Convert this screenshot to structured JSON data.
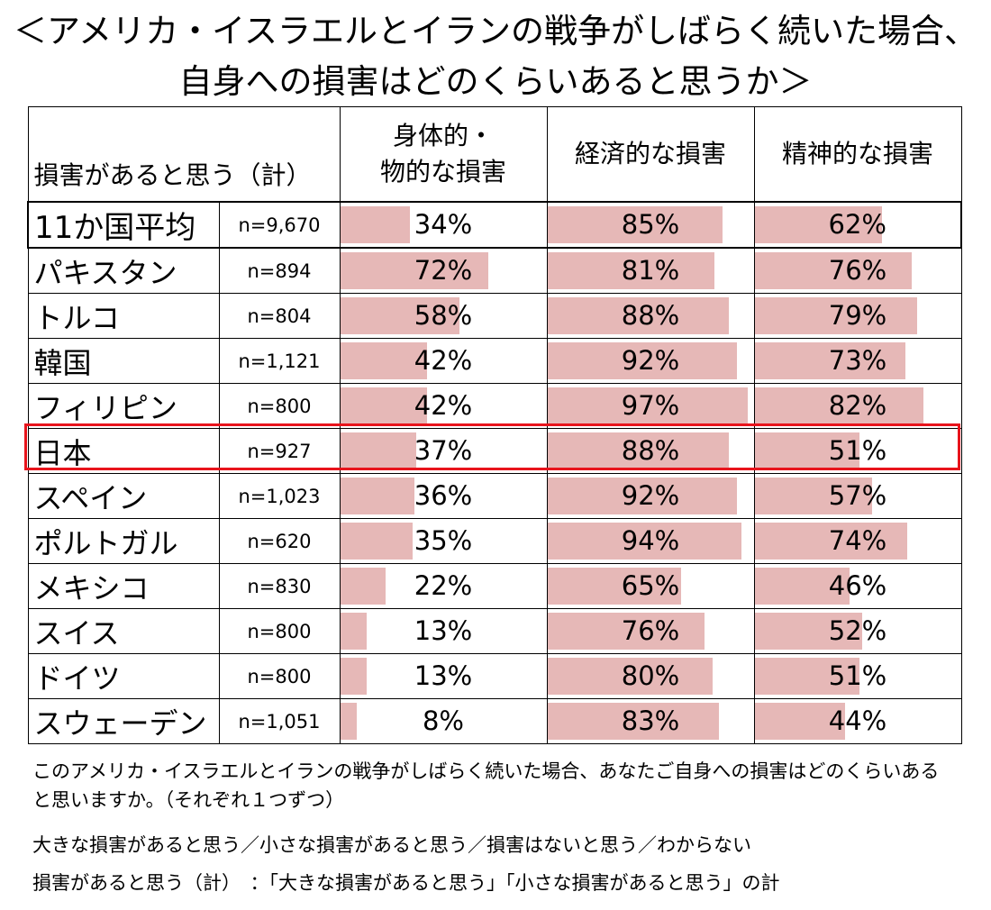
{
  "title_line1": "＜アメリカ・イスラエルとイランの戦争がしばらく続いた場合、",
  "title_line2": "自身への損害はどのくらいあると思うか＞",
  "chart_data": {
    "type": "table",
    "row_header": "損害があると思う（計）",
    "columns": [
      "身体的・物的な損害",
      "経済的な損害",
      "精神的な損害"
    ],
    "column_lines": [
      [
        "身体的・",
        "物的な損害"
      ],
      [
        "経済的な損害"
      ],
      [
        "精神的な損害"
      ]
    ],
    "value_max": 100,
    "rows": [
      {
        "name": "11か国平均",
        "n": "n=9,670",
        "values": [
          34,
          85,
          62
        ],
        "labels": [
          "34%",
          "85%",
          "62%"
        ]
      },
      {
        "name": "パキスタン",
        "n": "n=894",
        "values": [
          72,
          81,
          76
        ],
        "labels": [
          "72%",
          "81%",
          "76%"
        ]
      },
      {
        "name": "トルコ",
        "n": "n=804",
        "values": [
          58,
          88,
          79
        ],
        "labels": [
          "58%",
          "88%",
          "79%"
        ]
      },
      {
        "name": "韓国",
        "n": "n=1,121",
        "values": [
          42,
          92,
          73
        ],
        "labels": [
          "42%",
          "92%",
          "73%"
        ]
      },
      {
        "name": "フィリピン",
        "n": "n=800",
        "values": [
          42,
          97,
          82
        ],
        "labels": [
          "42%",
          "97%",
          "82%"
        ]
      },
      {
        "name": "日本",
        "n": "n=927",
        "values": [
          37,
          88,
          51
        ],
        "labels": [
          "37%",
          "88%",
          "51%"
        ]
      },
      {
        "name": "スペイン",
        "n": "n=1,023",
        "values": [
          36,
          92,
          57
        ],
        "labels": [
          "36%",
          "92%",
          "57%"
        ]
      },
      {
        "name": "ポルトガル",
        "n": "n=620",
        "values": [
          35,
          94,
          74
        ],
        "labels": [
          "35%",
          "94%",
          "74%"
        ]
      },
      {
        "name": "メキシコ",
        "n": "n=830",
        "values": [
          22,
          65,
          46
        ],
        "labels": [
          "22%",
          "65%",
          "46%"
        ]
      },
      {
        "name": "スイス",
        "n": "n=800",
        "values": [
          13,
          76,
          52
        ],
        "labels": [
          "13%",
          "76%",
          "52%"
        ]
      },
      {
        "name": "ドイツ",
        "n": "n=800",
        "values": [
          13,
          80,
          51
        ],
        "labels": [
          "13%",
          "80%",
          "51%"
        ]
      },
      {
        "name": "スウェーデン",
        "n": "n=1,051",
        "values": [
          8,
          83,
          44
        ],
        "labels": [
          "8%",
          "83%",
          "44%"
        ]
      }
    ],
    "bar_color": "#e6b8b7",
    "highlight_row": "日本",
    "highlight_color": "#e8141c"
  },
  "notes": {
    "line1": "このアメリカ・イスラエルとイランの戦争がしばらく続いた場合、あなたご自身への損害はどのくらいある",
    "line2": "と思いますか。（それぞれ１つずつ）",
    "line3": "大きな損害があると思う／小さな損害があると思う／損害はないと思う／わからない",
    "line4": "損害があると思う（計）　：「大きな損害があると思う」「小さな損害があると思う」の計"
  }
}
